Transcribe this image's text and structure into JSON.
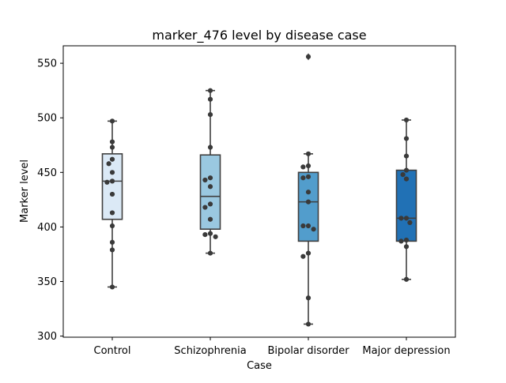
{
  "chart_data": {
    "type": "box",
    "title": "marker_476 level by disease case",
    "xlabel": "Case",
    "ylabel": "Marker level",
    "ylim": [
      299,
      566
    ],
    "yticks": [
      300,
      350,
      400,
      450,
      500,
      550
    ],
    "ytick_labels": [
      "300",
      "350",
      "400",
      "450",
      "500",
      "550"
    ],
    "categories": [
      "Control",
      "Schizophrenia",
      "Bipolar disorder",
      "Major depression"
    ],
    "colors": [
      "#dbe9f6",
      "#9ac8e0",
      "#529dcc",
      "#2171b5"
    ],
    "grid": false,
    "legend": "none",
    "boxes": [
      {
        "q1": 407,
        "median": 442,
        "q3": 467,
        "whisker_low": 345,
        "whisker_high": 497,
        "outliers": []
      },
      {
        "q1": 398,
        "median": 428,
        "q3": 466,
        "whisker_low": 376,
        "whisker_high": 525,
        "outliers": []
      },
      {
        "q1": 387,
        "median": 423,
        "q3": 450,
        "whisker_low": 311,
        "whisker_high": 467,
        "outliers": [
          556
        ]
      },
      {
        "q1": 387,
        "median": 408,
        "q3": 452,
        "whisker_low": 352,
        "whisker_high": 498,
        "outliers": []
      }
    ],
    "points": [
      [
        497,
        478,
        473,
        462,
        458,
        450,
        442,
        441,
        430,
        413,
        401,
        386,
        379,
        345
      ],
      [
        525,
        517,
        503,
        473,
        445,
        443,
        437,
        421,
        418,
        407,
        394,
        393,
        391,
        376
      ],
      [
        556,
        467,
        456,
        455,
        446,
        445,
        432,
        423,
        401,
        401,
        398,
        376,
        373,
        335,
        311
      ],
      [
        498,
        481,
        465,
        452,
        448,
        444,
        408,
        408,
        404,
        388,
        387,
        382,
        352
      ]
    ]
  }
}
